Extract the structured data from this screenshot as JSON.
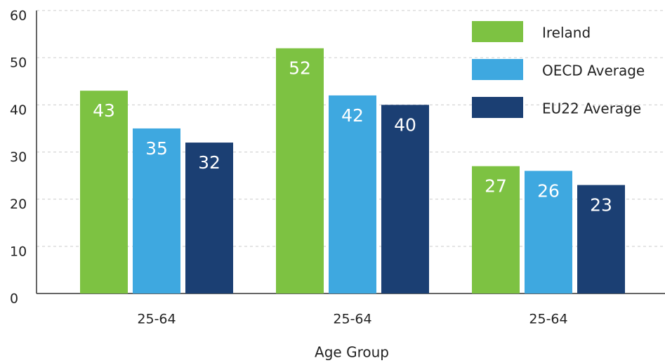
{
  "chart_data": {
    "type": "bar",
    "x_label": "Age Group",
    "categories": [
      "25-64",
      "25-64",
      "25-64"
    ],
    "series": [
      {
        "name": "Ireland",
        "color": "#7dc242",
        "values": [
          43,
          52,
          27
        ]
      },
      {
        "name": "OECD Average",
        "color": "#3ea8e0",
        "values": [
          35,
          42,
          26
        ]
      },
      {
        "name": "EU22 Average",
        "color": "#1b3f73",
        "values": [
          32,
          40,
          23
        ]
      }
    ],
    "ylim": [
      0,
      60
    ],
    "yticks": [
      0,
      10,
      20,
      30,
      40,
      50,
      60
    ],
    "grid": true,
    "legend": "top-right"
  }
}
